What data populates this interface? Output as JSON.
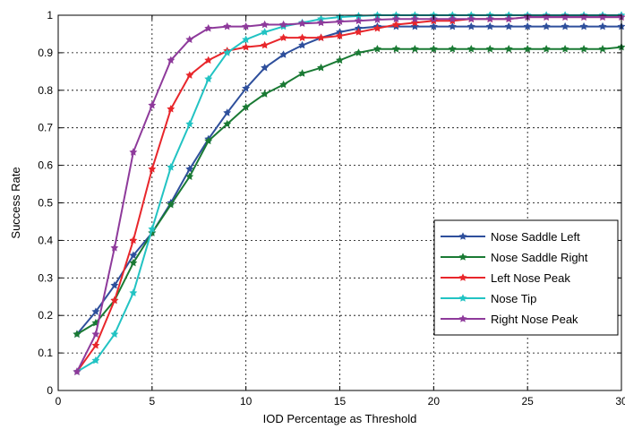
{
  "chart_data": {
    "type": "line",
    "title": "",
    "xlabel": "IOD Percentage as Threshold",
    "ylabel": "Success Rate",
    "xlim": [
      0,
      30
    ],
    "ylim": [
      0,
      1
    ],
    "xticks": [
      0,
      5,
      10,
      15,
      20,
      25,
      30
    ],
    "yticks": [
      0,
      0.1,
      0.2,
      0.3,
      0.4,
      0.5,
      0.6,
      0.7,
      0.8,
      0.9,
      1
    ],
    "xtick_labels": [
      "0",
      "5",
      "10",
      "15",
      "20",
      "25",
      "30"
    ],
    "ytick_labels": [
      "0",
      "0.1",
      "0.2",
      "0.3",
      "0.4",
      "0.5",
      "0.6",
      "0.7",
      "0.8",
      "0.9",
      "1"
    ],
    "grid": true,
    "legend_position": "center-right",
    "x": [
      1,
      2,
      3,
      4,
      5,
      6,
      7,
      8,
      9,
      10,
      11,
      12,
      13,
      14,
      15,
      16,
      17,
      18,
      19,
      20,
      21,
      22,
      23,
      24,
      25,
      26,
      27,
      28,
      29,
      30
    ],
    "series": [
      {
        "name": "Nose Saddle Left",
        "color": "#2e4f9c",
        "marker": "star",
        "values": [
          0.15,
          0.21,
          0.28,
          0.36,
          0.42,
          0.5,
          0.59,
          0.67,
          0.74,
          0.805,
          0.86,
          0.895,
          0.92,
          0.94,
          0.955,
          0.965,
          0.97,
          0.97,
          0.97,
          0.97,
          0.97,
          0.97,
          0.97,
          0.97,
          0.97,
          0.97,
          0.97,
          0.97,
          0.97,
          0.97
        ]
      },
      {
        "name": "Nose Saddle Right",
        "color": "#1a7a34",
        "marker": "star",
        "values": [
          0.15,
          0.18,
          0.24,
          0.34,
          0.42,
          0.495,
          0.57,
          0.665,
          0.71,
          0.755,
          0.79,
          0.815,
          0.845,
          0.86,
          0.88,
          0.9,
          0.91,
          0.91,
          0.91,
          0.91,
          0.91,
          0.91,
          0.91,
          0.91,
          0.91,
          0.91,
          0.91,
          0.91,
          0.91,
          0.915
        ]
      },
      {
        "name": "Left Nose Peak",
        "color": "#e8262b",
        "marker": "star",
        "values": [
          0.05,
          0.12,
          0.24,
          0.4,
          0.59,
          0.75,
          0.84,
          0.88,
          0.905,
          0.915,
          0.92,
          0.94,
          0.94,
          0.94,
          0.945,
          0.955,
          0.965,
          0.975,
          0.98,
          0.985,
          0.985,
          0.99,
          0.99,
          0.99,
          0.995,
          0.995,
          0.995,
          0.995,
          0.995,
          0.995
        ]
      },
      {
        "name": "Nose Tip",
        "color": "#22c3c3",
        "marker": "star",
        "values": [
          0.05,
          0.08,
          0.15,
          0.26,
          0.43,
          0.595,
          0.71,
          0.83,
          0.9,
          0.935,
          0.955,
          0.97,
          0.98,
          0.99,
          0.995,
          0.998,
          1.0,
          1.0,
          1.0,
          1.0,
          1.0,
          1.0,
          1.0,
          1.0,
          1.0,
          1.0,
          1.0,
          1.0,
          1.0,
          1.0
        ]
      },
      {
        "name": "Right Nose Peak",
        "color": "#8e3a9b",
        "marker": "star",
        "values": [
          0.05,
          0.15,
          0.38,
          0.635,
          0.76,
          0.88,
          0.935,
          0.965,
          0.97,
          0.97,
          0.975,
          0.975,
          0.978,
          0.98,
          0.983,
          0.985,
          0.988,
          0.99,
          0.99,
          0.99,
          0.99,
          0.99,
          0.99,
          0.99,
          0.995,
          0.995,
          0.995,
          0.995,
          0.995,
          0.995
        ]
      }
    ]
  }
}
